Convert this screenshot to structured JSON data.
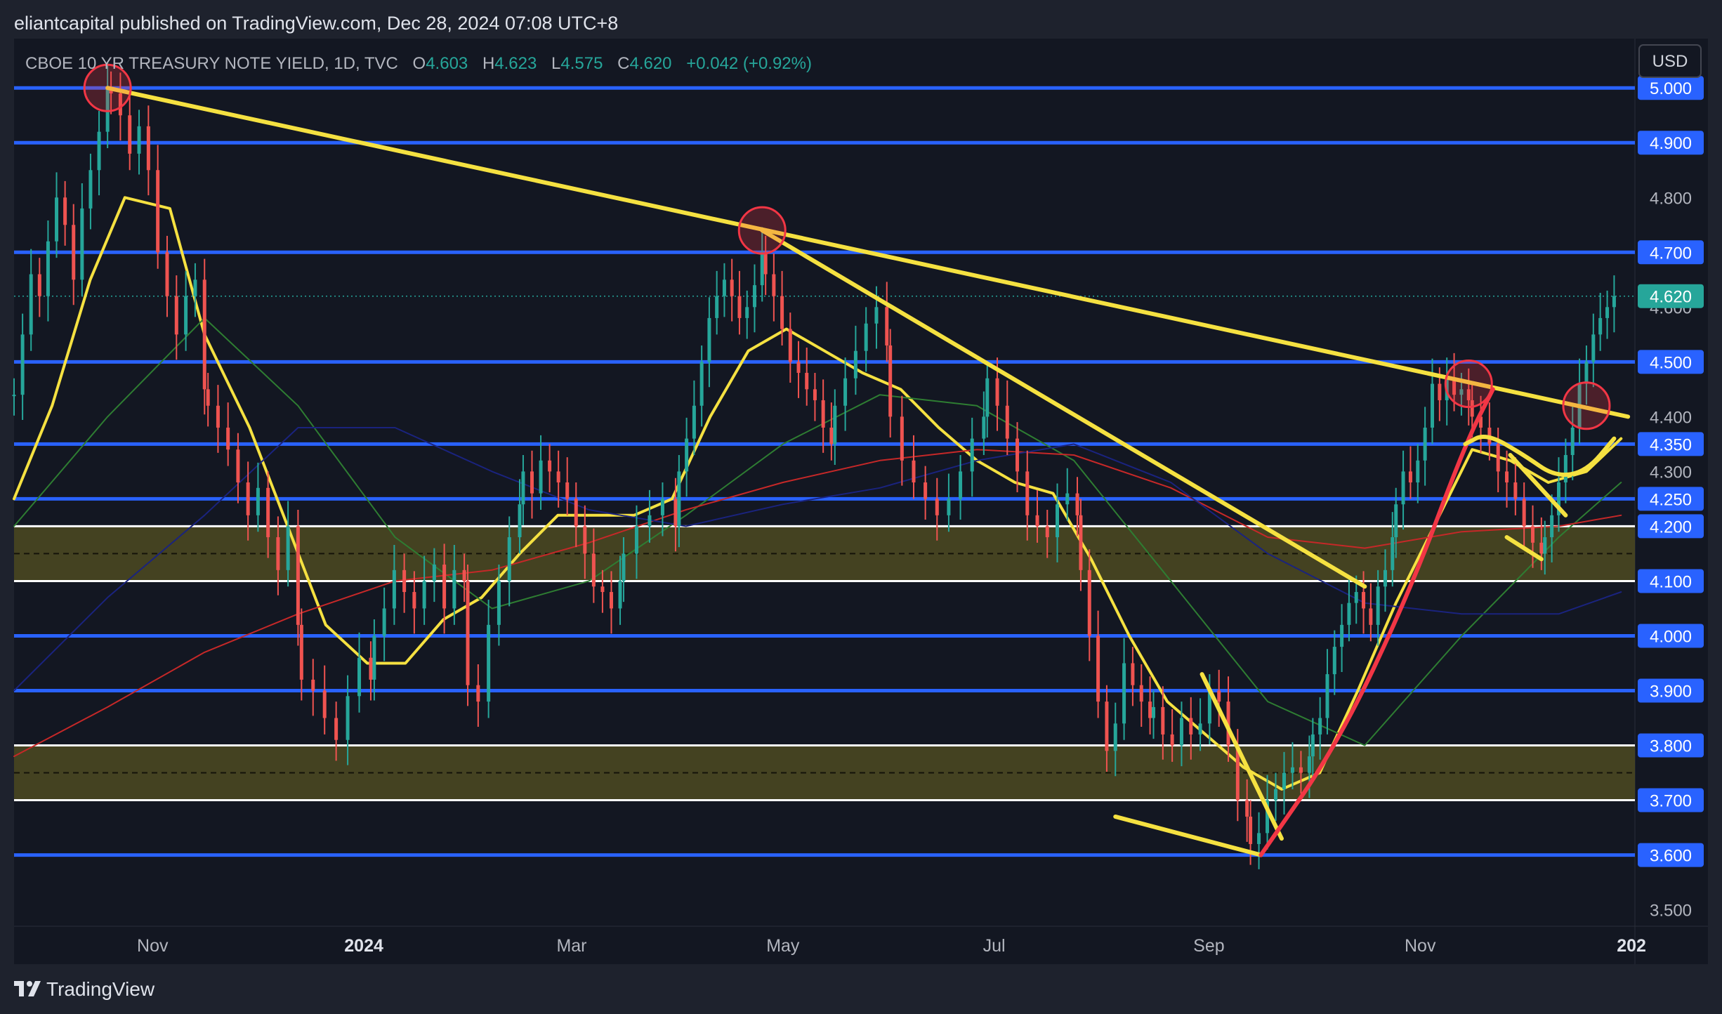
{
  "header": {
    "published": "eliantcapital published on TradingView.com, Dec 28, 2024 07:08 UTC+8"
  },
  "symbol": {
    "name": "CBOE 10 YR TREASURY NOTE YIELD, 1D, TVC",
    "o_label": "O",
    "o_value": "4.603",
    "h_label": "H",
    "h_value": "4.623",
    "l_label": "L",
    "l_value": "4.575",
    "c_label": "C",
    "c_value": "4.620",
    "change": "+0.042 (+0.92%)"
  },
  "currency": "USD",
  "footer": {
    "brand": "TradingView"
  },
  "colors": {
    "background": "#131722",
    "frame": "#1e222d",
    "level": "#2962ff",
    "zone_fill": "#4d4a21",
    "trend": "#f5e141",
    "up": "#26a69a",
    "down": "#ef5350",
    "ema_fast": "#f5e141",
    "sma_mid": "#2e7d32",
    "sma_slow": "#c62828",
    "sma_long": "#1a237e",
    "highlight_red": "#f23645",
    "last_price": "#26a69a"
  },
  "chart_data": {
    "type": "candlestick",
    "title": "CBOE 10 YR TREASURY NOTE YIELD, 1D, TVC",
    "y_axis": {
      "ticks": [
        3.5,
        3.6,
        3.7,
        3.8,
        3.9,
        4.0,
        4.1,
        4.2,
        4.25,
        4.3,
        4.35,
        4.4,
        4.5,
        4.6,
        4.7,
        4.8,
        4.9,
        5.0
      ],
      "tick_labels": [
        "3.500",
        "3.600",
        "3.700",
        "3.800",
        "3.900",
        "4.000",
        "4.100",
        "4.200",
        "4.250",
        "4.300",
        "4.350",
        "4.400",
        "4.500",
        "4.600",
        "4.700",
        "4.800",
        "4.900",
        "5.000"
      ],
      "highlighted_labels": [
        "3.600",
        "3.700",
        "3.800",
        "3.900",
        "4.000",
        "4.100",
        "4.200",
        "4.250",
        "4.350",
        "4.500",
        "4.700",
        "4.900",
        "5.000"
      ],
      "range": [
        3.47,
        5.09
      ]
    },
    "x_axis": {
      "range": [
        "2023-09-22",
        "2025-01-02"
      ],
      "ticks": [
        {
          "date": "2023-11-01",
          "label": "Nov",
          "bold": false
        },
        {
          "date": "2024-01-01",
          "label": "2024",
          "bold": true
        },
        {
          "date": "2024-03-01",
          "label": "Mar",
          "bold": false
        },
        {
          "date": "2024-05-01",
          "label": "May",
          "bold": false
        },
        {
          "date": "2024-07-01",
          "label": "Jul",
          "bold": false
        },
        {
          "date": "2024-09-01",
          "label": "Sep",
          "bold": false
        },
        {
          "date": "2024-11-01",
          "label": "Nov",
          "bold": false
        },
        {
          "date": "2025-01-01",
          "label": "202",
          "bold": true
        }
      ]
    },
    "last_price": {
      "value": 4.62,
      "label": "4.620"
    },
    "horizontal_levels": [
      5.0,
      4.9,
      4.7,
      4.5,
      4.35,
      4.25,
      4.0,
      3.9,
      3.6
    ],
    "zones": [
      {
        "top": 4.2,
        "bottom": 4.1,
        "mid_line": 4.15
      },
      {
        "top": 3.8,
        "bottom": 3.7,
        "mid_line": 3.75
      }
    ],
    "trendlines": [
      {
        "color": "yellow",
        "from": {
          "date": "2023-10-19",
          "value": 5.0
        },
        "to": {
          "date": "2024-12-31",
          "value": 4.4
        }
      },
      {
        "color": "yellow",
        "from": {
          "date": "2024-04-25",
          "value": 4.74
        },
        "to": {
          "date": "2024-10-16",
          "value": 4.09
        }
      },
      {
        "color": "yellow",
        "from": {
          "date": "2024-08-05",
          "value": 3.67
        },
        "to": {
          "date": "2024-09-16",
          "value": 3.6
        }
      },
      {
        "color": "yellow",
        "from": {
          "date": "2024-08-30",
          "value": 3.93
        },
        "to": {
          "date": "2024-09-22",
          "value": 3.63
        }
      },
      {
        "color": "yellow",
        "from": {
          "date": "2024-11-27",
          "value": 4.33
        },
        "to": {
          "date": "2024-12-13",
          "value": 4.22
        }
      },
      {
        "color": "yellow",
        "from": {
          "date": "2024-11-26",
          "value": 4.18
        },
        "to": {
          "date": "2024-12-06",
          "value": 4.14
        }
      }
    ],
    "curved_paths": [
      {
        "color": "red",
        "points": [
          [
            "2024-09-16",
            3.6
          ],
          [
            "2024-10-08",
            3.8
          ],
          [
            "2024-10-29",
            4.08
          ],
          [
            "2024-11-14",
            4.35
          ],
          [
            "2024-11-22",
            4.45
          ]
        ]
      },
      {
        "color": "yellow",
        "points": [
          [
            "2024-11-14",
            4.35
          ],
          [
            "2024-11-20",
            4.37
          ],
          [
            "2024-12-01",
            4.33
          ],
          [
            "2024-12-10",
            4.29
          ],
          [
            "2024-12-19",
            4.3
          ],
          [
            "2024-12-27",
            4.36
          ]
        ]
      }
    ],
    "highlight_circles": [
      {
        "date": "2023-10-19",
        "value": 5.0
      },
      {
        "date": "2024-04-25",
        "value": 4.74
      },
      {
        "date": "2024-11-15",
        "value": 4.46
      },
      {
        "date": "2024-12-19",
        "value": 4.42
      }
    ],
    "series": [
      {
        "type": "candles",
        "daily_closes": [
          {
            "from": "2023-09-22",
            "to": "2023-10-19",
            "values": [
              4.44,
              4.55,
              4.66,
              4.62,
              4.72,
              4.8,
              4.75,
              4.65,
              4.78,
              4.85,
              4.92,
              5.0
            ]
          },
          {
            "from": "2023-10-20",
            "to": "2023-11-16",
            "values": [
              4.99,
              4.95,
              4.88,
              4.93,
              4.85,
              4.7,
              4.62,
              4.55,
              4.62,
              4.65,
              4.45
            ]
          },
          {
            "from": "2023-11-17",
            "to": "2023-12-13",
            "values": [
              4.42,
              4.38,
              4.34,
              4.28,
              4.22,
              4.27,
              4.18,
              4.12,
              4.2,
              4.02
            ]
          },
          {
            "from": "2023-12-14",
            "to": "2024-01-03",
            "values": [
              3.92,
              3.9,
              3.85,
              3.81,
              3.89,
              3.96,
              3.92
            ]
          },
          {
            "from": "2024-01-04",
            "to": "2024-01-30",
            "values": [
              4.0,
              4.05,
              4.12,
              4.08,
              4.05,
              4.1,
              4.13,
              4.05,
              4.12,
              4.1
            ]
          },
          {
            "from": "2024-01-31",
            "to": "2024-02-15",
            "values": [
              3.91,
              3.88,
              4.02,
              4.1,
              4.18,
              4.24
            ]
          },
          {
            "from": "2024-02-16",
            "to": "2024-03-15",
            "values": [
              4.3,
              4.26,
              4.32,
              4.3,
              4.28,
              4.25,
              4.2,
              4.15,
              4.09,
              4.08,
              4.05,
              4.1
            ]
          },
          {
            "from": "2024-03-16",
            "to": "2024-03-31",
            "values": [
              4.15,
              4.2,
              4.22,
              4.25,
              4.2
            ]
          },
          {
            "from": "2024-04-01",
            "to": "2024-04-25",
            "values": [
              4.3,
              4.36,
              4.42,
              4.5,
              4.58,
              4.62,
              4.65,
              4.62,
              4.58,
              4.6,
              4.64,
              4.7
            ]
          },
          {
            "from": "2024-04-26",
            "to": "2024-05-15",
            "values": [
              4.66,
              4.62,
              4.56,
              4.5,
              4.48,
              4.45,
              4.43,
              4.38,
              4.35
            ]
          },
          {
            "from": "2024-05-16",
            "to": "2024-05-31",
            "values": [
              4.42,
              4.47,
              4.52,
              4.57,
              4.6,
              4.53
            ]
          },
          {
            "from": "2024-06-01",
            "to": "2024-06-28",
            "values": [
              4.4,
              4.32,
              4.28,
              4.25,
              4.22,
              4.25,
              4.3,
              4.36,
              4.4
            ]
          },
          {
            "from": "2024-06-29",
            "to": "2024-07-25",
            "values": [
              4.47,
              4.42,
              4.36,
              4.3,
              4.22,
              4.2,
              4.18,
              4.24,
              4.26,
              4.22
            ]
          },
          {
            "from": "2024-07-26",
            "to": "2024-08-15",
            "values": [
              4.12,
              4.0,
              3.88,
              3.79,
              3.84,
              3.95,
              3.91,
              3.88,
              3.85
            ]
          },
          {
            "from": "2024-08-16",
            "to": "2024-09-12",
            "values": [
              3.87,
              3.82,
              3.8,
              3.85,
              3.82,
              3.84,
              3.9,
              3.88,
              3.8,
              3.7,
              3.67
            ]
          },
          {
            "from": "2024-09-13",
            "to": "2024-09-30",
            "values": [
              3.62,
              3.64,
              3.7,
              3.72,
              3.75,
              3.76,
              3.75,
              3.78
            ]
          },
          {
            "from": "2024-10-01",
            "to": "2024-10-24",
            "values": [
              3.82,
              3.85,
              3.93,
              3.98,
              4.02,
              4.06,
              4.08,
              4.05,
              4.02,
              4.09,
              4.12,
              4.18
            ]
          },
          {
            "from": "2024-10-25",
            "to": "2024-11-15",
            "values": [
              4.24,
              4.3,
              4.28,
              4.32,
              4.38,
              4.46,
              4.43,
              4.47,
              4.44,
              4.45,
              4.43
            ]
          },
          {
            "from": "2024-11-16",
            "to": "2024-12-06",
            "values": [
              4.4,
              4.38,
              4.35,
              4.3,
              4.28,
              4.25,
              4.2,
              4.17,
              4.15
            ]
          },
          {
            "from": "2024-12-07",
            "to": "2024-12-27",
            "values": [
              4.18,
              4.22,
              4.28,
              4.33,
              4.38,
              4.46,
              4.5,
              4.55,
              4.58,
              4.6,
              4.62
            ]
          }
        ]
      },
      {
        "type": "moving_average",
        "color": "yellow",
        "points": [
          [
            "2023-09-22",
            4.25
          ],
          [
            "2023-10-03",
            4.42
          ],
          [
            "2023-10-14",
            4.65
          ],
          [
            "2023-10-24",
            4.8
          ],
          [
            "2023-11-06",
            4.78
          ],
          [
            "2023-11-16",
            4.55
          ],
          [
            "2023-11-29",
            4.38
          ],
          [
            "2023-12-10",
            4.2
          ],
          [
            "2023-12-21",
            4.02
          ],
          [
            "2024-01-02",
            3.95
          ],
          [
            "2024-01-13",
            3.95
          ],
          [
            "2024-01-24",
            4.03
          ],
          [
            "2024-02-04",
            4.07
          ],
          [
            "2024-02-15",
            4.15
          ],
          [
            "2024-02-26",
            4.22
          ],
          [
            "2024-03-08",
            4.22
          ],
          [
            "2024-03-19",
            4.22
          ],
          [
            "2024-03-30",
            4.25
          ],
          [
            "2024-04-10",
            4.4
          ],
          [
            "2024-04-21",
            4.52
          ],
          [
            "2024-05-02",
            4.56
          ],
          [
            "2024-05-13",
            4.52
          ],
          [
            "2024-05-24",
            4.48
          ],
          [
            "2024-06-04",
            4.45
          ],
          [
            "2024-06-15",
            4.38
          ],
          [
            "2024-06-26",
            4.32
          ],
          [
            "2024-07-07",
            4.28
          ],
          [
            "2024-07-18",
            4.26
          ],
          [
            "2024-07-29",
            4.14
          ],
          [
            "2024-08-09",
            4.0
          ],
          [
            "2024-08-20",
            3.88
          ],
          [
            "2024-08-31",
            3.82
          ],
          [
            "2024-09-11",
            3.76
          ],
          [
            "2024-09-22",
            3.72
          ],
          [
            "2024-10-03",
            3.75
          ],
          [
            "2024-10-14",
            3.9
          ],
          [
            "2024-10-25",
            4.06
          ],
          [
            "2024-11-05",
            4.2
          ],
          [
            "2024-11-16",
            4.34
          ],
          [
            "2024-11-27",
            4.32
          ],
          [
            "2024-12-08",
            4.28
          ],
          [
            "2024-12-19",
            4.3
          ],
          [
            "2024-12-29",
            4.36
          ]
        ]
      },
      {
        "type": "moving_average",
        "color": "green",
        "points": [
          [
            "2023-09-22",
            4.2
          ],
          [
            "2023-10-19",
            4.4
          ],
          [
            "2023-11-16",
            4.58
          ],
          [
            "2023-12-13",
            4.42
          ],
          [
            "2024-01-10",
            4.18
          ],
          [
            "2024-02-07",
            4.05
          ],
          [
            "2024-03-06",
            4.1
          ],
          [
            "2024-04-03",
            4.22
          ],
          [
            "2024-05-01",
            4.35
          ],
          [
            "2024-05-29",
            4.44
          ],
          [
            "2024-06-26",
            4.42
          ],
          [
            "2024-07-24",
            4.32
          ],
          [
            "2024-08-21",
            4.1
          ],
          [
            "2024-09-18",
            3.88
          ],
          [
            "2024-10-16",
            3.8
          ],
          [
            "2024-11-13",
            4.0
          ],
          [
            "2024-12-11",
            4.18
          ],
          [
            "2024-12-29",
            4.28
          ]
        ]
      },
      {
        "type": "moving_average",
        "color": "red",
        "points": [
          [
            "2023-09-22",
            3.78
          ],
          [
            "2023-10-19",
            3.87
          ],
          [
            "2023-11-16",
            3.97
          ],
          [
            "2023-12-13",
            4.04
          ],
          [
            "2024-01-10",
            4.1
          ],
          [
            "2024-02-07",
            4.12
          ],
          [
            "2024-03-06",
            4.17
          ],
          [
            "2024-04-03",
            4.23
          ],
          [
            "2024-05-01",
            4.28
          ],
          [
            "2024-05-29",
            4.32
          ],
          [
            "2024-06-26",
            4.34
          ],
          [
            "2024-07-24",
            4.33
          ],
          [
            "2024-08-21",
            4.27
          ],
          [
            "2024-09-18",
            4.18
          ],
          [
            "2024-10-16",
            4.16
          ],
          [
            "2024-11-13",
            4.19
          ],
          [
            "2024-12-11",
            4.2
          ],
          [
            "2024-12-29",
            4.22
          ]
        ]
      },
      {
        "type": "moving_average",
        "color": "navy",
        "points": [
          [
            "2023-09-22",
            3.9
          ],
          [
            "2023-10-19",
            4.07
          ],
          [
            "2023-11-16",
            4.22
          ],
          [
            "2023-12-13",
            4.38
          ],
          [
            "2024-01-10",
            4.38
          ],
          [
            "2024-02-07",
            4.3
          ],
          [
            "2024-03-06",
            4.23
          ],
          [
            "2024-04-03",
            4.2
          ],
          [
            "2024-05-01",
            4.24
          ],
          [
            "2024-05-29",
            4.27
          ],
          [
            "2024-06-26",
            4.32
          ],
          [
            "2024-07-24",
            4.35
          ],
          [
            "2024-08-21",
            4.28
          ],
          [
            "2024-09-18",
            4.15
          ],
          [
            "2024-10-16",
            4.06
          ],
          [
            "2024-11-13",
            4.04
          ],
          [
            "2024-12-11",
            4.04
          ],
          [
            "2024-12-29",
            4.08
          ]
        ]
      }
    ]
  }
}
